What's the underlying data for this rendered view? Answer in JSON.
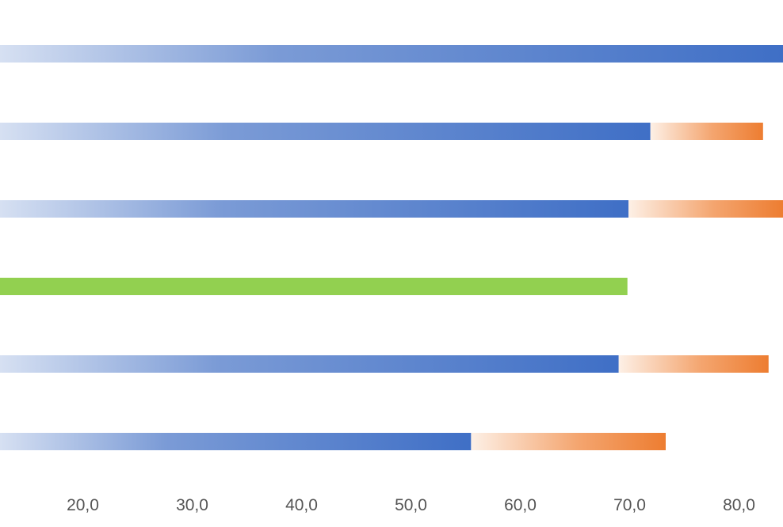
{
  "chart_data": {
    "type": "bar",
    "orientation": "horizontal",
    "stacked": true,
    "xlim": [
      11.3,
      84.8
    ],
    "x_ticks": [
      "20,0",
      "30,0",
      "40,0",
      "50,0",
      "60,0",
      "70,0",
      "80,0"
    ],
    "x_tick_values": [
      20,
      30,
      40,
      50,
      60,
      70,
      80
    ],
    "grid": false,
    "legend": "none",
    "rows": [
      {
        "segments": [
          {
            "start": 11.3,
            "end": 84.8,
            "color": "blue"
          }
        ]
      },
      {
        "segments": [
          {
            "start": 11.3,
            "end": 71.9,
            "color": "blue"
          },
          {
            "start": 71.9,
            "end": 82.2,
            "color": "orange"
          }
        ]
      },
      {
        "segments": [
          {
            "start": 11.3,
            "end": 69.9,
            "color": "blue"
          },
          {
            "start": 69.9,
            "end": 84.8,
            "color": "orange"
          }
        ]
      },
      {
        "segments": [
          {
            "start": 11.3,
            "end": 69.8,
            "color": "green"
          }
        ]
      },
      {
        "segments": [
          {
            "start": 11.3,
            "end": 69.0,
            "color": "blue"
          },
          {
            "start": 69.0,
            "end": 82.7,
            "color": "orange"
          }
        ]
      },
      {
        "segments": [
          {
            "start": 11.3,
            "end": 55.5,
            "color": "blue"
          },
          {
            "start": 55.5,
            "end": 73.3,
            "color": "orange"
          }
        ]
      }
    ],
    "colors": {
      "blue": "#3f6fc6",
      "blue_light": "#d6e0f2",
      "orange": "#ed7d31",
      "orange_light": "#fdf0e6",
      "green": "#92d050"
    }
  }
}
